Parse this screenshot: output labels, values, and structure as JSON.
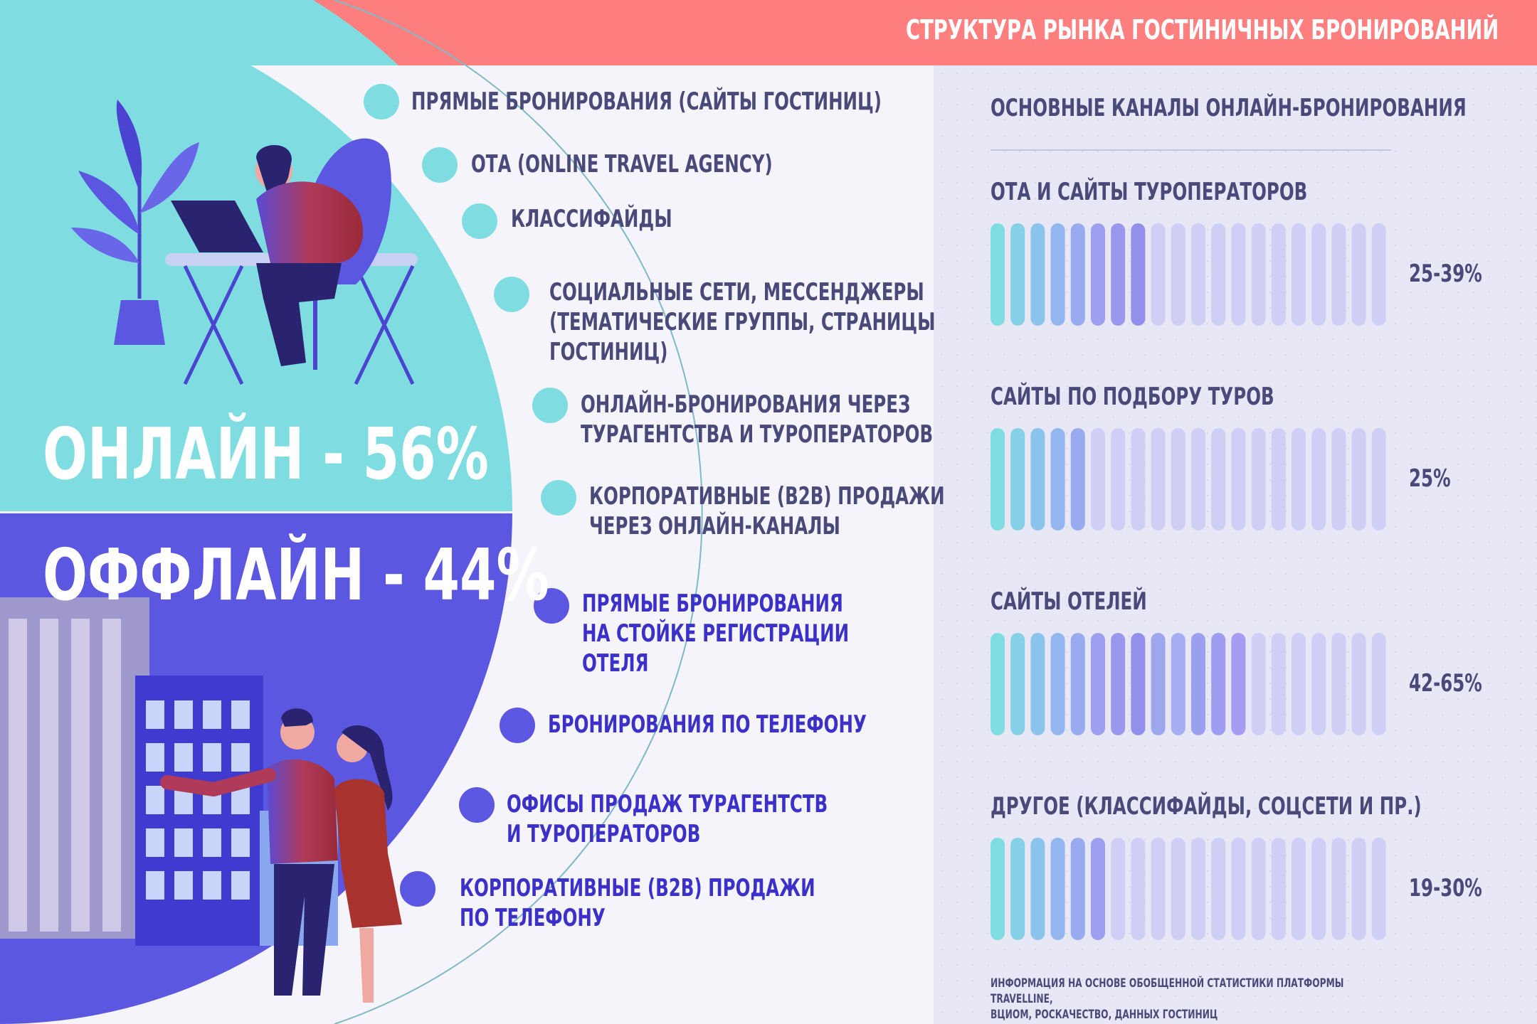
{
  "header": {
    "title": "СТРУКТУРА РЫНКА ГОСТИНИЧНЫХ БРОНИРОВАНИЙ"
  },
  "online": {
    "headline": "ОНЛАЙН - 56%",
    "share_percent": 56,
    "channels": [
      "ПРЯМЫЕ БРОНИРОВАНИЯ (САЙТЫ ГОСТИНИЦ)",
      "ОТА (ONLINE TRAVEL AGENCY)",
      "КЛАССИФАЙДЫ",
      "СОЦИАЛЬНЫЕ СЕТИ, МЕССЕНДЖЕРЫ\n(ТЕМАТИЧЕСКИЕ ГРУППЫ, СТРАНИЦЫ\nГОСТИНИЦ)",
      "ОНЛАЙН-БРОНИРОВАНИЯ ЧЕРЕЗ\nТУРАГЕНТСТВА И ТУРОПЕРАТОРОВ",
      "КОРПОРАТИВНЫЕ (B2B) ПРОДАЖИ\nЧЕРЕЗ ОНЛАЙН-КАНАЛЫ"
    ]
  },
  "offline": {
    "headline": "ОФФЛАЙН - 44%",
    "share_percent": 44,
    "channels": [
      "ПРЯМЫЕ БРОНИРОВАНИЯ\nНА СТОЙКЕ РЕГИСТРАЦИИ\nОТЕЛЯ",
      "БРОНИРОВАНИЯ ПО ТЕЛЕФОНУ",
      "ОФИСЫ ПРОДАЖ ТУРАГЕНТСТВ\nИ ТУРОПЕРАТОРОВ",
      "КОРПОРАТИВНЫЕ (B2B) ПРОДАЖИ\nПО ТЕЛЕФОНУ"
    ]
  },
  "online_channels_panel": {
    "title": "ОСНОВНЫЕ КАНАЛЫ ОНЛАЙН-БРОНИРОВАНИЯ",
    "bar_segments_total": 20,
    "items": [
      {
        "label": "ОТА И САЙТЫ ТУРОПЕРАТОРОВ",
        "value": "25-39%",
        "filled_segments": 8
      },
      {
        "label": "САЙТЫ ПО ПОДБОРУ ТУРОВ",
        "value": "25%",
        "filled_segments": 5
      },
      {
        "label": "САЙТЫ ОТЕЛЕЙ",
        "value": "42-65%",
        "filled_segments": 13
      },
      {
        "label": "ДРУГОЕ (КЛАССИФАЙДЫ, СОЦСЕТИ И ПР.)",
        "value": "19-30%",
        "filled_segments": 6
      }
    ]
  },
  "footnote": "ИНФОРМАЦИЯ НА ОСНОВЕ ОБОБЩЕННОЙ СТАТИСТИКИ ПЛАТФОРМЫ TRAVELLINE,\nВЦИОМ, РОСКАЧЕСТВО, ДАННЫХ ГОСТИНИЦ",
  "colors": {
    "header_bg": "#ff7f7f",
    "online_bg": "#7fdde2",
    "offline_bg": "#5b57e0",
    "online_dot": "#7fdde2",
    "offline_dot": "#5b57e0",
    "bar_empty": "#cfcff5"
  },
  "icons": [
    "person-at-laptop-illustration",
    "office-buildings-illustration",
    "couple-illustration",
    "plant-illustration"
  ]
}
